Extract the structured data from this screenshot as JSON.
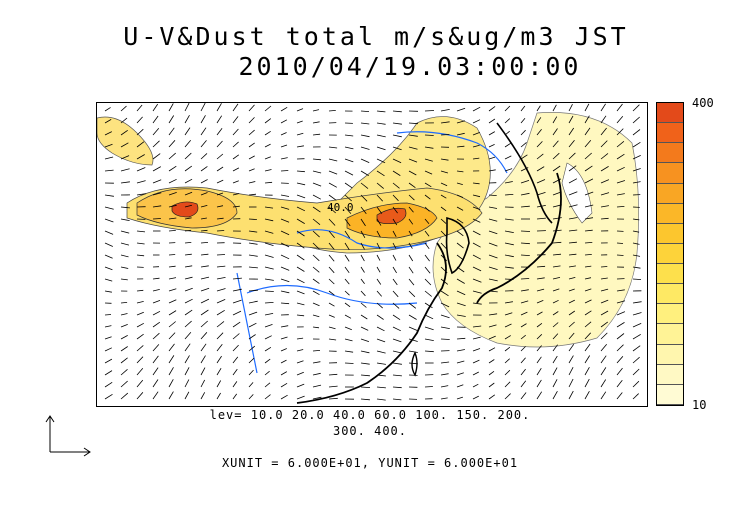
{
  "title_line1": "U-V&Dust total m/s&ug/m3 JST",
  "title_line2": "2010/04/19.03:00:00",
  "colorbar": {
    "max_label": "400",
    "min_label": "10",
    "colors": [
      "#e34a1a",
      "#f0621a",
      "#f37a1c",
      "#f79220",
      "#f9a624",
      "#fbb728",
      "#fcc62e",
      "#fdd33a",
      "#fde04c",
      "#fee964",
      "#fff07e",
      "#fff396",
      "#fff6ae",
      "#fff9c4",
      "#fffbd4"
    ]
  },
  "contour_label": "40.0",
  "levels_line1": "lev= 10.0 20.0 40.0 60.0 100. 150. 200.",
  "levels_line2": "300. 400.",
  "units_line": "XUNIT = 6.000E+01, YUNIT = 6.000E+01",
  "icons": [
    "reference-vector-icon"
  ]
}
